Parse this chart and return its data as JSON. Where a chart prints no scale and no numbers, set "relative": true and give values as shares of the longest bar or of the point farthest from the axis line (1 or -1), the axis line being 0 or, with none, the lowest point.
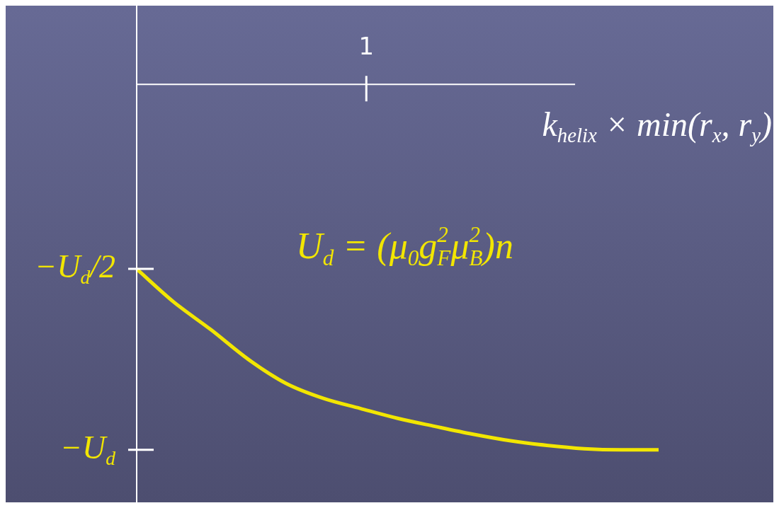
{
  "chart_data": {
    "type": "line",
    "relative": true,
    "xlabel": "k$_{helix}$ × min(r$_{x}$, r$_{y}$)",
    "categories": [
      null,
      null,
      null,
      null,
      null,
      null,
      null,
      null,
      null,
      null,
      null,
      null,
      null,
      null,
      null
    ],
    "series": [
      {
        "color": "#f2e600",
        "values": [
          -0.505,
          -0.596,
          -0.672,
          -0.753,
          -0.818,
          -0.859,
          -0.887,
          -0.914,
          -0.936,
          -0.957,
          -0.975,
          -0.988,
          -0.997,
          -1,
          -1
        ]
      }
    ],
    "annotations": [
      "1",
      "−U$_{d}$/2",
      "−U$_{d}$",
      "U$_{d}$ = (μ$_{0}$g$_{F}$$^{2}$μ$_{B}$$^{2}$)n"
    ],
    "legend": false,
    "marker": "none",
    "line_style": "solid"
  }
}
